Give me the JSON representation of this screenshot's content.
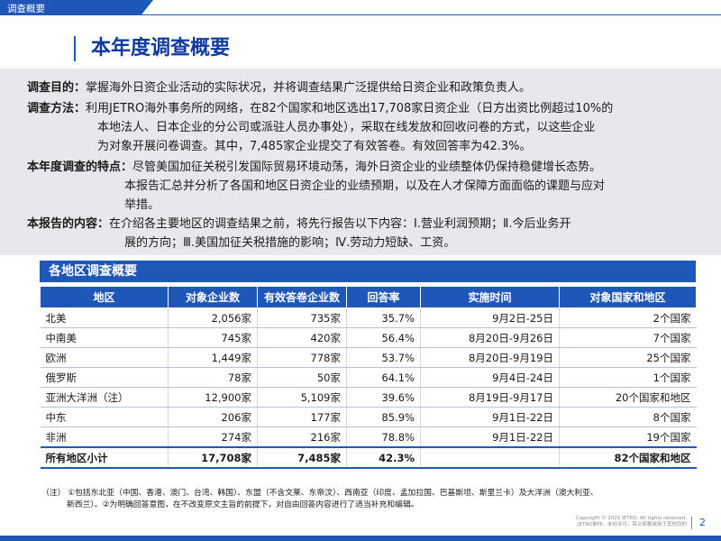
{
  "header": {
    "tab_label": "调查概要"
  },
  "title": "本年度调查概要",
  "intro": {
    "purpose": {
      "label": "调查目的：",
      "text": "掌握海外日资企业活动的实际状况，并将调查结果广泛提供给日资企业和政策负责人。"
    },
    "method": {
      "label": "调查方法：",
      "lines": [
        "利用JETRO海外事务所的网络，在82个国家和地区选出17,708家日资企业（日方出资比例超过10%的",
        "本地法人、日本企业的分公司或派驻人员办事处），采取在线发放和回收问卷的方式，以这些企业",
        "为对象开展问卷调查。其中，7,485家企业提交了有效答卷。有效回答率为42.3%。"
      ]
    },
    "features": {
      "label": "本年度调查的特点：",
      "lines": [
        "尽管美国加征关税引发国际贸易环境动荡，海外日资企业的业绩整体仍保持稳健增长态势。",
        "本报告汇总并分析了各国和地区日资企业的业绩预期，以及在人才保障方面面临的课题与应对",
        "举措。"
      ]
    },
    "contents": {
      "label": "本报告的内容：",
      "lines": [
        "在介绍各主要地区的调查结果之前，将先行报告以下内容：Ⅰ.营业利润预期；Ⅱ.今后业务开",
        "展的方向；Ⅲ.美国加征关税措施的影响；Ⅳ.劳动力短缺、工资。"
      ]
    }
  },
  "regions_table": {
    "title": "各地区调查概要",
    "columns": [
      "地区",
      "对象企业数",
      "有效答卷企业数",
      "回答率",
      "实施时间",
      "对象国家和地区"
    ],
    "rows": [
      [
        "北美",
        "2,056家",
        "735家",
        "35.7%",
        "9月2日-25日",
        "2个国家"
      ],
      [
        "中南美",
        "745家",
        "420家",
        "56.4%",
        "8月20日-9月26日",
        "7个国家"
      ],
      [
        "欧洲",
        "1,449家",
        "778家",
        "53.7%",
        "8月20日-9月19日",
        "25个国家"
      ],
      [
        "俄罗斯",
        "78家",
        "50家",
        "64.1%",
        "9月4日-24日",
        "1个国家"
      ],
      [
        "亚洲大洋洲（注）",
        "12,900家",
        "5,109家",
        "39.6%",
        "8月19日-9月17日",
        "20个国家和地区"
      ],
      [
        "中东",
        "206家",
        "177家",
        "85.9%",
        "9月1日-22日",
        "8个国家"
      ],
      [
        "非洲",
        "274家",
        "216家",
        "78.8%",
        "9月1日-22日",
        "19个国家"
      ]
    ],
    "total": [
      "所有地区小计",
      "17,708家",
      "7,485家",
      "42.3%",
      "",
      "82个国家和地区"
    ]
  },
  "notes": {
    "line1": "（注）  ①包括东北亚（中国、香港、澳门、台湾、韩国）、东盟（不含文莱、东帝汶）、西南亚（印度、孟加拉国、巴基斯坦、斯里兰卡）及大洋洲（澳大利亚、",
    "line2": "新西兰）。②为明确回答意图，在不改变原文主旨的前提下，对自由回答内容进行了适当补充和编辑。"
  },
  "footer": {
    "copyright_line1": "Copyright © 2025 JETRO. All rights reserved.",
    "copyright_line2": "JETRO制作。未经许可，禁止转载或用于其他目的",
    "page_number": "2"
  },
  "colors": {
    "brand_blue": "#1f57b8",
    "title_blue": "#0f3aa0",
    "intro_bg": "#e7e8ec"
  }
}
